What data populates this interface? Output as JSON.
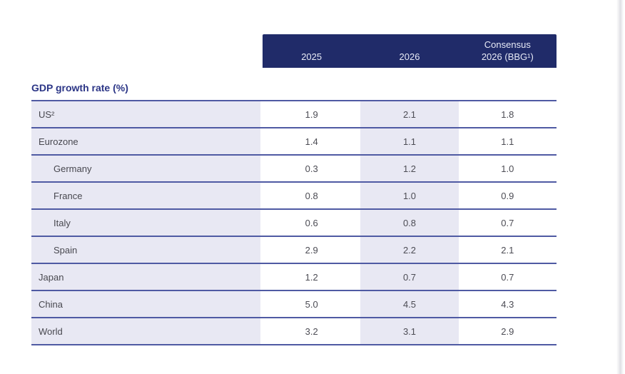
{
  "page": {
    "background": "#ffffff",
    "edge_strip_color": "#dfdfe3"
  },
  "colors": {
    "header_bg": "#202b69",
    "header_text": "#e7eaf6",
    "row_shade": "#e8e8f3",
    "rule": "#4f5aa3",
    "title_text": "#2b3586",
    "cell_text": "#4c4c54"
  },
  "table": {
    "section_title": "GDP growth rate (%)",
    "header": {
      "col1": "2025",
      "col2": "2026",
      "col3_line1": "Consensus",
      "col3_line2": "2026 (BBG¹)"
    },
    "rows": [
      {
        "label": "US²",
        "indent": false,
        "values": [
          "1.9",
          "2.1",
          "1.8"
        ]
      },
      {
        "label": "Eurozone",
        "indent": false,
        "values": [
          "1.4",
          "1.1",
          "1.1"
        ]
      },
      {
        "label": "Germany",
        "indent": true,
        "values": [
          "0.3",
          "1.2",
          "1.0"
        ]
      },
      {
        "label": "France",
        "indent": true,
        "values": [
          "0.8",
          "1.0",
          "0.9"
        ]
      },
      {
        "label": "Italy",
        "indent": true,
        "values": [
          "0.6",
          "0.8",
          "0.7"
        ]
      },
      {
        "label": "Spain",
        "indent": true,
        "values": [
          "2.9",
          "2.2",
          "2.1"
        ]
      },
      {
        "label": "Japan",
        "indent": false,
        "values": [
          "1.2",
          "0.7",
          "0.7"
        ]
      },
      {
        "label": "China",
        "indent": false,
        "values": [
          "5.0",
          "4.5",
          "4.3"
        ]
      },
      {
        "label": "World",
        "indent": false,
        "values": [
          "3.2",
          "3.1",
          "2.9"
        ]
      }
    ]
  },
  "chart_data": {
    "type": "table",
    "title": "GDP growth rate (%)",
    "columns": [
      "2025",
      "2026",
      "Consensus 2026 (BBG¹)"
    ],
    "row_labels": [
      "US²",
      "Eurozone",
      "Germany",
      "France",
      "Italy",
      "Spain",
      "Japan",
      "China",
      "World"
    ],
    "indented_rows": [
      "Germany",
      "France",
      "Italy",
      "Spain"
    ],
    "rows": [
      [
        "US²",
        1.9,
        2.1,
        1.8
      ],
      [
        "Eurozone",
        1.4,
        1.1,
        1.1
      ],
      [
        "Germany",
        0.3,
        1.2,
        1.0
      ],
      [
        "France",
        0.8,
        1.0,
        0.9
      ],
      [
        "Italy",
        0.6,
        0.8,
        0.7
      ],
      [
        "Spain",
        2.9,
        2.2,
        2.1
      ],
      [
        "Japan",
        1.2,
        0.7,
        0.7
      ],
      [
        "China",
        5.0,
        4.5,
        4.3
      ],
      [
        "World",
        3.2,
        3.1,
        2.9
      ]
    ],
    "layout": {
      "shaded_columns": [
        "row-labels",
        "2026"
      ],
      "rule_color": "#4f5aa3",
      "header_bg": "#202b69"
    }
  }
}
